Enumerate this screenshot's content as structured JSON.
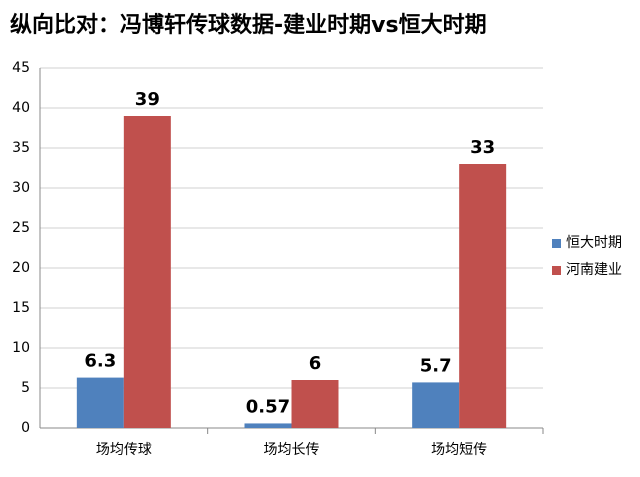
{
  "chart_data": {
    "type": "bar",
    "title": "纵向比对：冯博轩传球数据-建业时期vs恒大时期",
    "categories": [
      "场均传球",
      "场均长传",
      "场均短传"
    ],
    "series": [
      {
        "name": "恒大时期",
        "color": "#4f81bd",
        "values": [
          6.3,
          0.57,
          5.7
        ]
      },
      {
        "name": "河南建业",
        "color": "#c0504d",
        "values": [
          39,
          6,
          33
        ]
      }
    ],
    "ylim": [
      0,
      45
    ],
    "yticks": [
      0,
      5,
      10,
      15,
      20,
      25,
      30,
      35,
      40,
      45
    ],
    "grid": true,
    "legend": "right"
  }
}
